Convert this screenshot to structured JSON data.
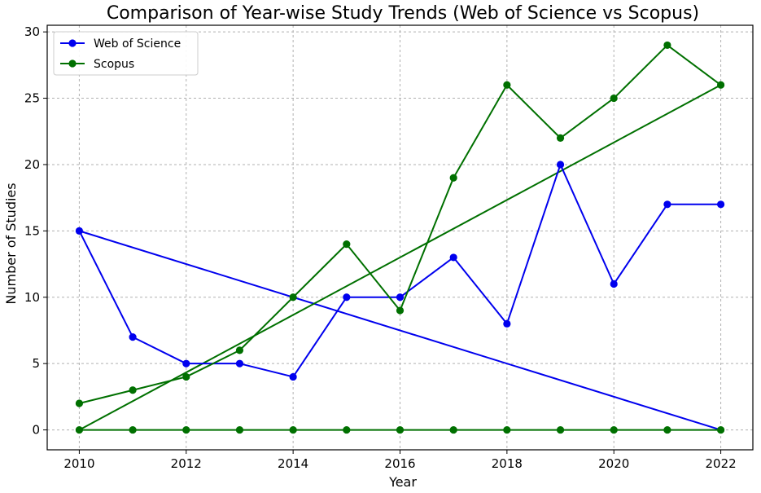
{
  "chart_data": {
    "type": "line",
    "title": "Comparison of Year-wise Study Trends (Web of Science vs Scopus)",
    "xlabel": "Year",
    "ylabel": "Number of Studies",
    "x": [
      2010,
      2011,
      2012,
      2013,
      2014,
      2015,
      2016,
      2017,
      2018,
      2019,
      2020,
      2021,
      2022
    ],
    "xlim": [
      2009.4,
      2022.6
    ],
    "ylim": [
      -1.5,
      30.5
    ],
    "xticks": [
      2010,
      2012,
      2014,
      2016,
      2018,
      2020,
      2022
    ],
    "xtick_labels": [
      "2010",
      "2012",
      "2014",
      "2016",
      "2018",
      "2020",
      "2022"
    ],
    "yticks": [
      0,
      5,
      10,
      15,
      20,
      25,
      30
    ],
    "ytick_labels": [
      "0",
      "5",
      "10",
      "15",
      "20",
      "25",
      "30"
    ],
    "grid": true,
    "legend_position": "top-left",
    "series": [
      {
        "name": "Web of Science",
        "color": "#0000ee",
        "values": [
          15,
          7,
          5,
          5,
          4,
          10,
          10,
          13,
          8,
          20,
          11,
          17,
          17
        ]
      },
      {
        "name": "Scopus",
        "color": "#007000",
        "values": [
          2,
          3,
          4,
          6,
          10,
          14,
          9,
          19,
          26,
          22,
          25,
          29,
          26
        ]
      }
    ],
    "extra_lines": [
      {
        "color": "#0000ee",
        "x": [
          2010,
          2022
        ],
        "y": [
          15,
          0
        ],
        "markers": false
      },
      {
        "color": "#007000",
        "x": [
          2010,
          2022
        ],
        "y": [
          0,
          26
        ],
        "markers": false
      },
      {
        "color": "#007000",
        "x": [
          2010,
          2011,
          2012,
          2013,
          2014,
          2015,
          2016,
          2017,
          2018,
          2019,
          2020,
          2021,
          2022
        ],
        "y": [
          0,
          0,
          0,
          0,
          0,
          0,
          0,
          0,
          0,
          0,
          0,
          0,
          0
        ],
        "markers": true
      }
    ]
  }
}
